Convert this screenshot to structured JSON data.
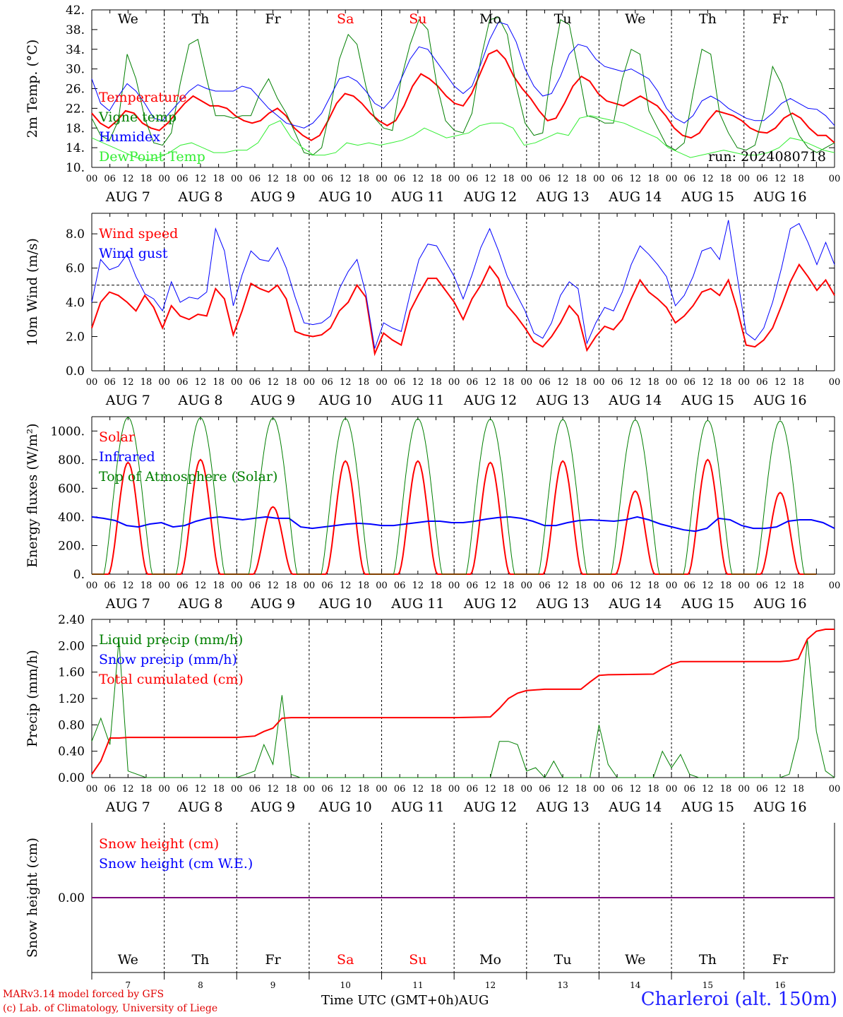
{
  "run_label": "run: 2024080718",
  "station_title": "Charleroi (alt. 150m)",
  "credit_line1": "MARv3.14 model forced by GFS",
  "credit_line2": "(c) Lab. of Climatology, University of Liege",
  "time_axis_label": "Time UTC (GMT+0h)",
  "month_label": "AUG",
  "colors": {
    "red": "#ff0000",
    "blue": "#0000ff",
    "green": "#007f00",
    "lightgreen": "#33ee33",
    "purple": "#7f007f"
  },
  "chart_data": [
    {
      "id": "temperature",
      "type": "line",
      "ylabel": "2m Temp. (°C)",
      "ylim": [
        10,
        42
      ],
      "yticks": [
        "10.",
        "14.",
        "18.",
        "22.",
        "26.",
        "30.",
        "34.",
        "38.",
        "42."
      ],
      "day_names": [
        "We",
        "Th",
        "Fr",
        "Sa",
        "Su",
        "Mo",
        "Tu",
        "We",
        "Th",
        "Fr"
      ],
      "weekend_days": [
        3,
        4
      ],
      "x_hour_ticks": [
        "00",
        "06",
        "12",
        "18"
      ],
      "date_labels": [
        "AUG 7",
        "AUG 8",
        "AUG 9",
        "AUG 10",
        "AUG 11",
        "AUG 12",
        "AUG 13",
        "AUG 14",
        "AUG 15",
        "AUG 16"
      ],
      "x_unit": "hours since 2024-08-07 00 UTC (3-hourly)",
      "series": [
        {
          "name": "Temperature",
          "color": "#ff0000",
          "width": 2,
          "values": [
            21,
            19,
            18,
            19.5,
            21.5,
            21,
            19,
            18,
            17.5,
            19,
            21,
            23,
            24.5,
            23.5,
            22.5,
            22.5,
            22,
            20.5,
            19.5,
            19,
            19.5,
            21,
            22,
            20.5,
            18,
            16.5,
            15.5,
            16.5,
            19.5,
            23,
            25,
            24.5,
            23,
            21,
            19.5,
            18.5,
            19.5,
            22.5,
            26.5,
            29,
            28,
            26.5,
            24.5,
            23,
            22.5,
            25,
            29,
            33,
            33.8,
            32,
            28.5,
            26,
            24,
            21.5,
            19.5,
            20,
            23,
            26.5,
            28.5,
            27.5,
            25,
            23.5,
            23,
            22.5,
            23.5,
            24.5,
            23.5,
            22.5,
            20.5,
            18,
            16.5,
            16,
            17,
            19.5,
            21.5,
            21,
            20.5,
            19.5,
            18,
            17.2,
            17,
            18,
            20,
            21,
            20,
            18,
            16.5,
            16.5,
            15
          ]
        },
        {
          "name": "Vigne temp",
          "color": "#007f00",
          "width": 1,
          "values": [
            20,
            16.5,
            15.5,
            19.5,
            33,
            28,
            20,
            15,
            14.5,
            17,
            27,
            35,
            36,
            28,
            20.5,
            20.5,
            20,
            20.5,
            20.5,
            25,
            28,
            24,
            21,
            17,
            13,
            12.5,
            14,
            22,
            32,
            37,
            35,
            26.5,
            20,
            18,
            17.5,
            28,
            35,
            40,
            38,
            27,
            19.5,
            17.5,
            17,
            21,
            32,
            40,
            40.5,
            37,
            26.5,
            19,
            16.5,
            17,
            30,
            40,
            39,
            30,
            20.5,
            20,
            19,
            19,
            28,
            34,
            33,
            21.5,
            18,
            14.5,
            13.5,
            15,
            25,
            34,
            33,
            21,
            17,
            14,
            13.5,
            14.5,
            21,
            30.5,
            27,
            21,
            16.5,
            14,
            13,
            14,
            15
          ]
        },
        {
          "name": "Humidex",
          "color": "#0000ff",
          "width": 1,
          "values": [
            28,
            23,
            21.5,
            24.5,
            27,
            25.5,
            23,
            20,
            19.5,
            21.5,
            23.5,
            25.5,
            26.8,
            26,
            25.5,
            25.5,
            25.5,
            26.5,
            26,
            24,
            22,
            20.5,
            19,
            18.5,
            18,
            19,
            21,
            24.5,
            28,
            28.5,
            27.5,
            25.5,
            23,
            22,
            24,
            28,
            32,
            34.5,
            34,
            31.5,
            29,
            26.5,
            25,
            26.5,
            31,
            36,
            39.5,
            39,
            35.5,
            30,
            26.5,
            24.5,
            25,
            28.5,
            33,
            35,
            34.5,
            32,
            30.5,
            30,
            29.5,
            30,
            29,
            28,
            25.5,
            22,
            20,
            19,
            20.5,
            23.5,
            24.5,
            23.5,
            22,
            21,
            20,
            19.5,
            19.5,
            21,
            23,
            24,
            23,
            22,
            21.8,
            20.5,
            18.5
          ]
        },
        {
          "name": "DewPoint Temp",
          "color": "#33ee33",
          "width": 1,
          "values": [
            16,
            15,
            14,
            13,
            12,
            11.5,
            12,
            13,
            14.5,
            15,
            14,
            13,
            13,
            13.5,
            13.5,
            15,
            18.5,
            19.5,
            16,
            14,
            12.5,
            12.5,
            13,
            15,
            14.5,
            15,
            14.5,
            15,
            15.5,
            16.5,
            18,
            17,
            16,
            16.5,
            17,
            18.5,
            19,
            19,
            18,
            14.5,
            15,
            16,
            17,
            16.5,
            20,
            20.5,
            20,
            19.5,
            19,
            18,
            17,
            16,
            14,
            13,
            12,
            12.5,
            13,
            13.5,
            13,
            12.5,
            12.5,
            13,
            14,
            16,
            15.5,
            14.5,
            13.5,
            13
          ]
        }
      ]
    },
    {
      "id": "wind",
      "type": "line",
      "ylabel": "10m Wind (m/s)",
      "ylim": [
        0,
        9.2
      ],
      "yticks": [
        "0.0",
        "2.0",
        "4.0",
        "6.0",
        "8.0"
      ],
      "reference_line": 5.0,
      "series": [
        {
          "name": "Wind speed",
          "color": "#ff0000",
          "width": 2,
          "values": [
            2.5,
            4,
            4.6,
            4.4,
            4,
            3.5,
            4.4,
            3.7,
            2.5,
            3.8,
            3.2,
            3,
            3.3,
            3.2,
            4.8,
            4.2,
            2.1,
            3.5,
            5.1,
            4.8,
            4.6,
            5,
            4.2,
            2.3,
            2.1,
            2,
            2.1,
            2.5,
            3.5,
            4,
            5,
            4.3,
            1,
            2.2,
            1.8,
            1.5,
            3.5,
            4.5,
            5.4,
            5.4,
            4.7,
            4,
            3,
            4.2,
            5,
            6.1,
            5.4,
            3.8,
            3.2,
            2.5,
            1.7,
            1.4,
            2,
            2.8,
            3.8,
            3.2,
            1.2,
            2,
            2.6,
            2.4,
            3,
            4.2,
            5.3,
            4.6,
            4.2,
            3.7,
            2.8,
            3.2,
            3.8,
            4.6,
            4.8,
            4.4,
            5.3,
            3.6,
            1.5,
            1.4,
            1.8,
            2.5,
            3.8,
            5.2,
            6.2,
            5.5,
            4.7,
            5.3,
            4.4
          ]
        },
        {
          "name": "Wind gust",
          "color": "#0000ff",
          "width": 1,
          "values": [
            4,
            6.5,
            5.9,
            6.1,
            6.8,
            5.5,
            4.5,
            4.2,
            3.5,
            5.2,
            4,
            4.3,
            4.2,
            4.6,
            8.3,
            7,
            3.8,
            5.6,
            7,
            6.5,
            6.4,
            7.2,
            6,
            4.3,
            2.8,
            2.7,
            2.8,
            3.2,
            4.8,
            5.8,
            6.5,
            4.5,
            1.3,
            2.8,
            2.5,
            2.3,
            4.5,
            6.5,
            7.4,
            7.3,
            6.4,
            5.5,
            4.2,
            5.6,
            7.2,
            8.3,
            7,
            5.5,
            4.5,
            3.5,
            2.2,
            1.9,
            2.8,
            4.4,
            5.2,
            4.8,
            1.6,
            2.8,
            3.7,
            3.5,
            4.6,
            6.2,
            7.3,
            6.8,
            6.2,
            5.5,
            3.8,
            4.4,
            5.5,
            7,
            7.2,
            6.5,
            8.8,
            5.5,
            2.2,
            1.8,
            2.5,
            4,
            6,
            8.3,
            8.6,
            7.5,
            6.2,
            7.5,
            6.2
          ]
        }
      ]
    },
    {
      "id": "energy",
      "type": "line",
      "ylabel": "Energy fluxes (W/m²)",
      "ylim": [
        0,
        1100
      ],
      "yticks": [
        "0.",
        "200.",
        "400.",
        "600.",
        "800.",
        "1000."
      ],
      "series": [
        {
          "name": "Solar",
          "color": "#ff0000",
          "width": 2,
          "day_peaks": [
            780,
            800,
            470,
            790,
            790,
            780,
            790,
            580,
            800,
            570
          ]
        },
        {
          "name": "Infrared",
          "color": "#0000ff",
          "width": 2,
          "values": [
            400,
            390,
            375,
            340,
            330,
            350,
            360,
            330,
            340,
            370,
            390,
            400,
            390,
            380,
            390,
            400,
            390,
            390,
            330,
            320,
            330,
            340,
            350,
            355,
            350,
            340,
            340,
            350,
            360,
            370,
            370,
            360,
            360,
            370,
            385,
            395,
            400,
            390,
            370,
            340,
            340,
            360,
            375,
            380,
            375,
            370,
            380,
            400,
            380,
            350,
            330,
            310,
            300,
            320,
            390,
            380,
            340,
            320,
            320,
            330,
            370,
            380,
            380,
            360,
            320
          ]
        },
        {
          "name": "Top of Atmosphere (Solar)",
          "color": "#007f00",
          "width": 1,
          "day_peaks": [
            1095,
            1093,
            1090,
            1088,
            1086,
            1083,
            1080,
            1077,
            1074,
            1070
          ]
        }
      ]
    },
    {
      "id": "precip",
      "type": "line",
      "ylabel": "Precip (mm/h)",
      "ylim": [
        0,
        2.4
      ],
      "yticks": [
        "0.00",
        "0.40",
        "0.80",
        "1.20",
        "1.60",
        "2.00",
        "2.40"
      ],
      "series": [
        {
          "name": "Liquid precip (mm/h)",
          "color": "#007f00",
          "width": 1,
          "points": [
            [
              0,
              0.55
            ],
            [
              3,
              0.9
            ],
            [
              6,
              0.5
            ],
            [
              9,
              2.1
            ],
            [
              12,
              0.1
            ],
            [
              18,
              0
            ],
            [
              48,
              0
            ],
            [
              51,
              0.05
            ],
            [
              54,
              0.1
            ],
            [
              57,
              0.5
            ],
            [
              60,
              0.2
            ],
            [
              63,
              1.25
            ],
            [
              66,
              0.05
            ],
            [
              69,
              0
            ],
            [
              132,
              0
            ],
            [
              135,
              0.55
            ],
            [
              138,
              0.55
            ],
            [
              141,
              0.5
            ],
            [
              144,
              0.1
            ],
            [
              147,
              0.15
            ],
            [
              150,
              0
            ],
            [
              153,
              0.25
            ],
            [
              156,
              0
            ],
            [
              165,
              0
            ],
            [
              168,
              0.8
            ],
            [
              171,
              0.2
            ],
            [
              174,
              0
            ],
            [
              186,
              0
            ],
            [
              189,
              0.4
            ],
            [
              192,
              0.15
            ],
            [
              195,
              0.35
            ],
            [
              198,
              0.05
            ],
            [
              201,
              0
            ],
            [
              228,
              0
            ],
            [
              231,
              0.05
            ],
            [
              234,
              0.6
            ],
            [
              237,
              2.1
            ],
            [
              240,
              0.7
            ],
            [
              243,
              0.1
            ],
            [
              246,
              0
            ]
          ]
        },
        {
          "name": "Snow precip (mm/h)",
          "color": "#0000ff",
          "width": 1,
          "points": []
        },
        {
          "name": "Total cumulated (cm)",
          "color": "#ff0000",
          "width": 2,
          "points": [
            [
              0,
              0.05
            ],
            [
              3,
              0.25
            ],
            [
              6,
              0.6
            ],
            [
              9,
              0.6
            ],
            [
              12,
              0.61
            ],
            [
              48,
              0.61
            ],
            [
              54,
              0.63
            ],
            [
              57,
              0.7
            ],
            [
              60,
              0.75
            ],
            [
              63,
              0.9
            ],
            [
              66,
              0.91
            ],
            [
              120,
              0.91
            ],
            [
              132,
              0.92
            ],
            [
              135,
              1.05
            ],
            [
              138,
              1.2
            ],
            [
              141,
              1.28
            ],
            [
              144,
              1.32
            ],
            [
              150,
              1.34
            ],
            [
              162,
              1.34
            ],
            [
              165,
              1.45
            ],
            [
              168,
              1.55
            ],
            [
              171,
              1.56
            ],
            [
              186,
              1.57
            ],
            [
              189,
              1.65
            ],
            [
              192,
              1.72
            ],
            [
              195,
              1.76
            ],
            [
              228,
              1.76
            ],
            [
              231,
              1.77
            ],
            [
              234,
              1.8
            ],
            [
              237,
              2.1
            ],
            [
              240,
              2.22
            ],
            [
              243,
              2.25
            ],
            [
              246,
              2.25
            ]
          ]
        }
      ]
    },
    {
      "id": "snow",
      "type": "line",
      "ylabel": "Snow height (cm)",
      "ylim": [
        -1,
        1
      ],
      "yticks": [
        "0.00"
      ],
      "series": [
        {
          "name": "Snow height (cm)",
          "color": "#ff0000",
          "width": 1,
          "constant": 0
        },
        {
          "name": "Snow height (cm W.E.)",
          "color": "#0000ff",
          "width": 1,
          "constant": 0
        }
      ],
      "day_numbers": [
        "7",
        "8",
        "9",
        "10",
        "11",
        "12",
        "13",
        "14",
        "15",
        "16"
      ]
    }
  ]
}
